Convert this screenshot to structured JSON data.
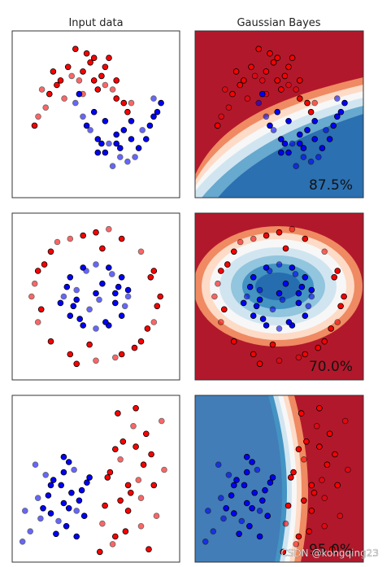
{
  "figure": {
    "columns": [
      "Input data",
      "Gaussian Bayes"
    ],
    "watermark": "CSDN @kongqing23"
  },
  "colors": {
    "red_point": "#ff0000",
    "blue_point": "#0000ff",
    "region_red": "#b2182b",
    "region_blue": "#2166ac",
    "edge": "#000000"
  },
  "chart_data": [
    {
      "type": "scatter",
      "title": "Input data",
      "dataset": "moons",
      "xlim": [
        -1.9,
        2.6
      ],
      "ylim": [
        -1.6,
        2.1
      ],
      "series": [
        {
          "class": "red",
          "x": [
            -1.2,
            -0.9,
            -0.6,
            -0.3,
            0.0,
            0.3,
            0.6,
            0.9,
            1.2,
            -1.0,
            -0.7,
            -0.4,
            -0.1,
            0.2,
            0.5,
            0.8,
            1.1,
            -1.3,
            -0.5,
            0.1,
            0.7,
            1.3,
            -0.8,
            0.4,
            0.0,
            -0.2,
            0.9,
            -1.1,
            0.6,
            0.3
          ],
          "y": [
            0.2,
            0.7,
            1.0,
            1.1,
            1.2,
            1.0,
            0.9,
            0.6,
            0.3,
            0.4,
            0.9,
            1.3,
            1.0,
            1.4,
            1.1,
            0.8,
            0.5,
            0.0,
            0.6,
            1.6,
            1.5,
            0.5,
            1.2,
            0.8,
            0.7,
            1.7,
            1.0,
            0.8,
            1.3,
            1.5
          ]
        },
        {
          "class": "blue",
          "x": [
            -0.2,
            0.1,
            0.4,
            0.7,
            1.0,
            1.3,
            1.6,
            1.9,
            2.1,
            0.2,
            0.6,
            0.9,
            1.2,
            1.5,
            1.8,
            0.0,
            0.5,
            1.1,
            1.4,
            2.0,
            0.3,
            0.8,
            1.7,
            -0.1,
            1.0,
            0.6,
            1.3,
            1.9,
            0.4,
            0.9
          ],
          "y": [
            0.5,
            0.0,
            -0.3,
            -0.4,
            -0.5,
            -0.3,
            -0.1,
            0.2,
            0.5,
            -0.1,
            -0.6,
            -0.2,
            -0.8,
            -0.5,
            0.0,
            0.2,
            -0.4,
            -0.1,
            -0.7,
            0.3,
            0.3,
            -0.9,
            -0.3,
            0.7,
            -0.7,
            0.1,
            0.1,
            0.6,
            -0.6,
            -0.4
          ]
        }
      ]
    },
    {
      "type": "scatter",
      "title": "Gaussian Bayes",
      "dataset": "moons",
      "score": "87.5%"
    },
    {
      "type": "scatter",
      "title": "",
      "dataset": "circles",
      "xlim": [
        -1.3,
        1.3
      ],
      "ylim": [
        -1.3,
        1.3
      ],
      "series": [
        {
          "class": "red",
          "x": [
            -1.0,
            -0.9,
            -0.7,
            -0.4,
            0.0,
            0.4,
            0.7,
            0.9,
            1.0,
            0.9,
            0.7,
            0.4,
            0.0,
            -0.4,
            -0.7,
            -0.9,
            -0.8,
            -0.2,
            0.3,
            0.8,
            0.85,
            0.2,
            -0.3,
            -0.85,
            -0.6,
            0.6,
            0.95,
            -0.95,
            0.1,
            -0.1
          ],
          "y": [
            0.0,
            0.4,
            0.7,
            0.9,
            1.0,
            0.9,
            0.7,
            0.4,
            0.0,
            -0.4,
            -0.7,
            -0.9,
            -1.0,
            -0.9,
            -0.7,
            -0.4,
            0.5,
            0.95,
            -0.95,
            -0.5,
            0.3,
            1.05,
            -1.05,
            -0.2,
            0.85,
            -0.8,
            -0.15,
            0.2,
            0.75,
            -0.75
          ]
        },
        {
          "class": "blue",
          "x": [
            -0.5,
            -0.4,
            -0.2,
            0.0,
            0.2,
            0.4,
            0.5,
            0.4,
            0.2,
            0.0,
            -0.2,
            -0.4,
            -0.3,
            0.3,
            0.1,
            -0.1,
            0.35,
            -0.35,
            0.45,
            -0.45,
            0.0,
            0.25,
            -0.25,
            0.15,
            -0.15,
            0.5,
            -0.55,
            0.05,
            0.3,
            -0.3
          ],
          "y": [
            0.0,
            0.3,
            0.45,
            0.5,
            0.45,
            0.3,
            0.0,
            -0.3,
            -0.45,
            -0.5,
            -0.45,
            -0.3,
            0.1,
            -0.1,
            0.2,
            -0.2,
            0.15,
            -0.15,
            -0.15,
            0.15,
            0.05,
            0.35,
            -0.35,
            -0.4,
            0.4,
            0.1,
            -0.1,
            -0.05,
            0.05,
            -0.05
          ]
        }
      ]
    },
    {
      "type": "scatter",
      "title": "",
      "dataset": "circles",
      "score": "70.0%"
    },
    {
      "type": "scatter",
      "title": "",
      "dataset": "linear",
      "xlim": [
        -3.0,
        3.5
      ],
      "ylim": [
        -3.0,
        3.5
      ],
      "series": [
        {
          "class": "red",
          "x": [
            0.5,
            1.0,
            1.5,
            2.0,
            2.5,
            0.8,
            1.2,
            1.8,
            2.2,
            2.8,
            0.6,
            1.4,
            1.9,
            2.4,
            1.1,
            0.9,
            1.6,
            2.1,
            2.6,
            1.3,
            0.7,
            1.7,
            2.3,
            1.0,
            2.0,
            1.5,
            0.4,
            2.9,
            1.2,
            1.8
          ],
          "y": [
            -1.5,
            -2.0,
            -1.0,
            -0.5,
            0.0,
            0.5,
            1.0,
            1.5,
            2.0,
            2.5,
            -0.8,
            -1.8,
            0.2,
            1.2,
            2.8,
            -2.3,
            -0.3,
            0.8,
            -1.2,
            1.7,
            0.3,
            2.3,
            -2.5,
            1.4,
            -1.6,
            0.0,
            -2.6,
            0.6,
            -0.6,
            3.0
          ]
        },
        {
          "class": "blue",
          "x": [
            -2.0,
            -1.5,
            -1.0,
            -0.5,
            0.0,
            -1.8,
            -1.2,
            -0.8,
            -0.3,
            -2.3,
            -1.6,
            -1.0,
            -0.6,
            -0.2,
            -1.4,
            -2.5,
            -0.9,
            -0.4,
            -1.7,
            -1.1,
            -0.7,
            -2.1,
            -1.3,
            -0.1,
            -1.9,
            -0.5,
            -1.0,
            -2.6,
            -0.8,
            -1.5
          ],
          "y": [
            -0.5,
            0.0,
            0.5,
            -1.0,
            0.3,
            -0.9,
            -1.4,
            0.9,
            -0.2,
            -1.8,
            -0.4,
            -0.7,
            0.6,
            -1.2,
            0.2,
            -1.0,
            -1.6,
            -0.6,
            0.4,
            0.0,
            -0.3,
            0.8,
            -1.9,
            0.1,
            -1.3,
            -2.0,
            1.1,
            -2.2,
            -0.9,
            -1.1
          ]
        }
      ]
    },
    {
      "type": "scatter",
      "title": "",
      "dataset": "linear",
      "score": "95.0%"
    }
  ]
}
